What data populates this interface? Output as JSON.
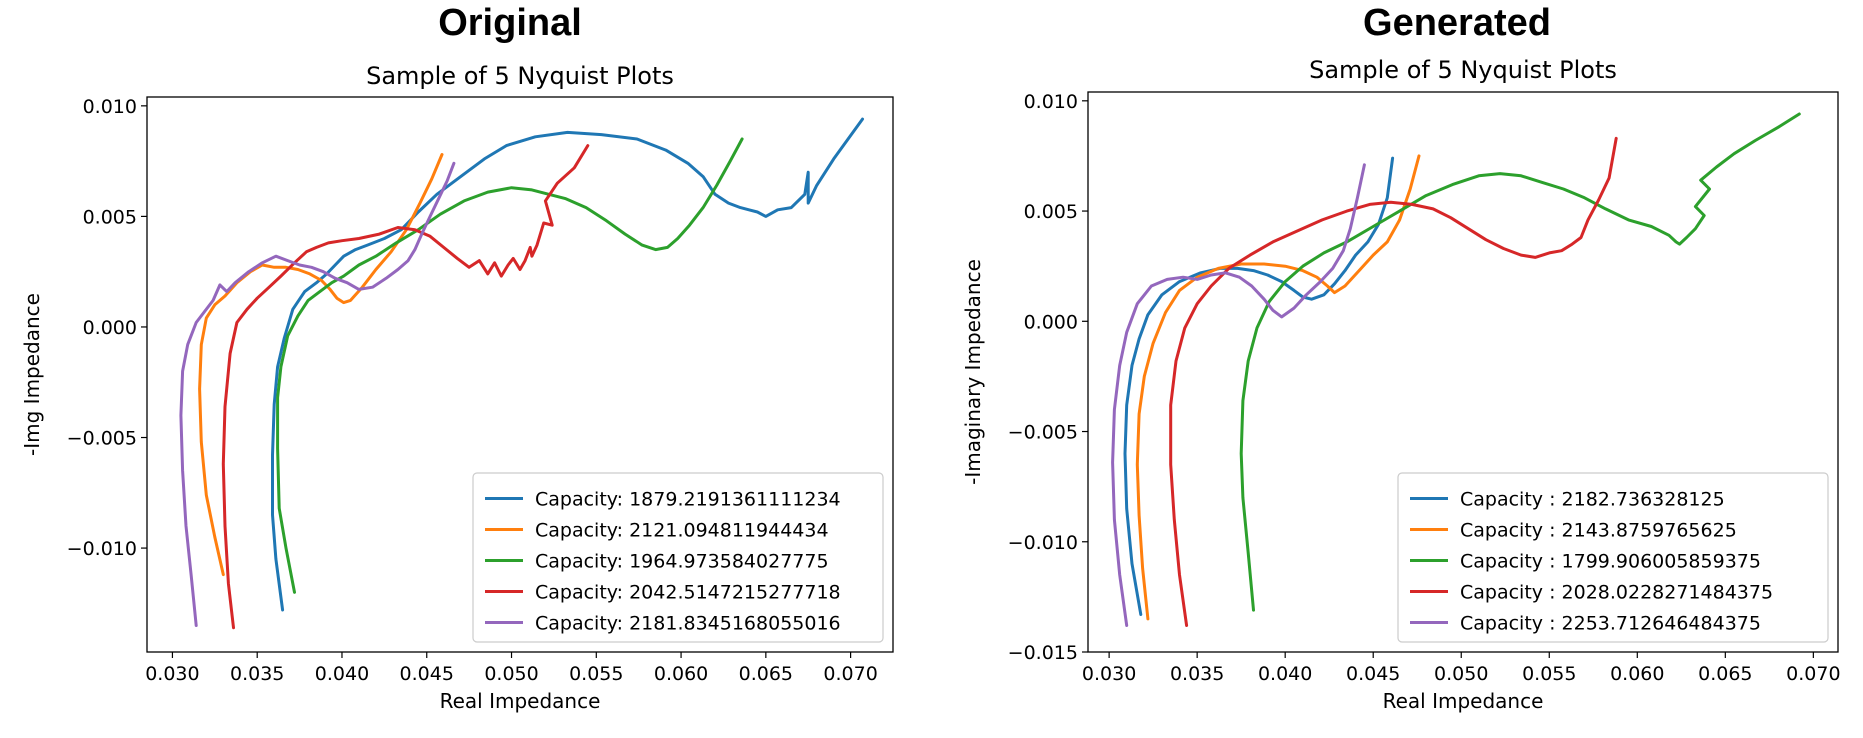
{
  "headers": [
    "Original",
    "Generated"
  ],
  "chart_data": [
    {
      "type": "line",
      "title": "Sample of 5 Nyquist Plots",
      "xlabel": "Real Impedance",
      "ylabel": "-Img Impedance",
      "xlim": [
        0.0285,
        0.0725
      ],
      "ylim": [
        -0.0147,
        0.0104
      ],
      "xticks": [
        0.03,
        0.035,
        0.04,
        0.045,
        0.05,
        0.055,
        0.06,
        0.065,
        0.07
      ],
      "xtick_labels": [
        "0.030",
        "0.035",
        "0.040",
        "0.045",
        "0.050",
        "0.055",
        "0.060",
        "0.065",
        "0.070"
      ],
      "yticks": [
        0.01,
        0.005,
        0.0,
        -0.005,
        -0.01
      ],
      "ytick_labels": [
        "0.010",
        "0.005",
        "0.000",
        "−0.005",
        "−0.010"
      ],
      "grid": false,
      "legend_position": "lower-right",
      "series": [
        {
          "name": "Capacity: 1879.2191361111234",
          "color": "#1f77b4",
          "x": [
            0.0365,
            0.0361,
            0.0359,
            0.0359,
            0.036,
            0.0362,
            0.0366,
            0.0371,
            0.0378,
            0.0385,
            0.0391,
            0.0396,
            0.0401,
            0.0408,
            0.0415,
            0.0425,
            0.0435,
            0.0445,
            0.0456,
            0.047,
            0.0484,
            0.0497,
            0.0514,
            0.0533,
            0.0553,
            0.0574,
            0.0591,
            0.0604,
            0.0613,
            0.062,
            0.0628,
            0.0635,
            0.064,
            0.0645,
            0.065,
            0.0657,
            0.0665,
            0.0673,
            0.0675,
            0.0675,
            0.068,
            0.069,
            0.0707
          ],
          "y": [
            -0.0128,
            -0.0105,
            -0.0085,
            -0.0058,
            -0.0035,
            -0.0018,
            -0.0005,
            0.0008,
            0.0016,
            0.002,
            0.0024,
            0.0028,
            0.0032,
            0.0035,
            0.0037,
            0.004,
            0.0044,
            0.0052,
            0.006,
            0.0068,
            0.0076,
            0.0082,
            0.0086,
            0.0088,
            0.0087,
            0.0085,
            0.008,
            0.0074,
            0.0068,
            0.006,
            0.0056,
            0.0054,
            0.0053,
            0.0052,
            0.005,
            0.0053,
            0.0054,
            0.006,
            0.007,
            0.0056,
            0.0064,
            0.0076,
            0.0094
          ]
        },
        {
          "name": "Capacity: 2121.094811944434",
          "color": "#ff7f0e",
          "x": [
            0.033,
            0.0325,
            0.032,
            0.0317,
            0.0316,
            0.0317,
            0.032,
            0.0325,
            0.0331,
            0.0338,
            0.0346,
            0.0353,
            0.036,
            0.0367,
            0.0374,
            0.0381,
            0.0388,
            0.0393,
            0.0397,
            0.0401,
            0.0405,
            0.0412,
            0.042,
            0.0429,
            0.0438,
            0.0446,
            0.0453,
            0.0459
          ],
          "y": [
            -0.0112,
            -0.0095,
            -0.0076,
            -0.0052,
            -0.0028,
            -0.0008,
            0.0004,
            0.001,
            0.0014,
            0.002,
            0.0025,
            0.0028,
            0.0027,
            0.0027,
            0.0026,
            0.0024,
            0.0021,
            0.0017,
            0.0013,
            0.0011,
            0.0012,
            0.0018,
            0.0026,
            0.0034,
            0.0044,
            0.0056,
            0.0067,
            0.0078
          ]
        },
        {
          "name": "Capacity: 1964.973584027775",
          "color": "#2ca02c",
          "x": [
            0.0372,
            0.0367,
            0.0363,
            0.0362,
            0.0362,
            0.0364,
            0.0368,
            0.0374,
            0.038,
            0.0387,
            0.0394,
            0.0401,
            0.041,
            0.042,
            0.0432,
            0.0445,
            0.0458,
            0.0472,
            0.0486,
            0.05,
            0.0512,
            0.0522,
            0.0532,
            0.0544,
            0.0556,
            0.0567,
            0.0577,
            0.0585,
            0.0592,
            0.0598,
            0.0605,
            0.0613,
            0.0621,
            0.0629,
            0.0636
          ],
          "y": [
            -0.012,
            -0.01,
            -0.0082,
            -0.0055,
            -0.0032,
            -0.0018,
            -0.0004,
            0.0005,
            0.0012,
            0.0016,
            0.002,
            0.0023,
            0.0028,
            0.0032,
            0.0038,
            0.0044,
            0.0051,
            0.0057,
            0.0061,
            0.0063,
            0.0062,
            0.006,
            0.0058,
            0.0054,
            0.0048,
            0.0042,
            0.0037,
            0.0035,
            0.0036,
            0.004,
            0.0046,
            0.0054,
            0.0064,
            0.0075,
            0.0085
          ]
        },
        {
          "name": "Capacity: 2042.5147215277718",
          "color": "#d62728",
          "x": [
            0.0336,
            0.0333,
            0.0331,
            0.033,
            0.0331,
            0.0334,
            0.0338,
            0.0344,
            0.035,
            0.0357,
            0.0364,
            0.0372,
            0.0379,
            0.0385,
            0.0392,
            0.04,
            0.041,
            0.0422,
            0.0433,
            0.0443,
            0.0452,
            0.046,
            0.0468,
            0.0475,
            0.0481,
            0.0486,
            0.049,
            0.0494,
            0.0498,
            0.0501,
            0.0505,
            0.0508,
            0.0511,
            0.0512,
            0.0515,
            0.0519,
            0.0524,
            0.052,
            0.0527,
            0.0537,
            0.0545
          ],
          "y": [
            -0.0136,
            -0.0116,
            -0.009,
            -0.0062,
            -0.0036,
            -0.0012,
            0.0002,
            0.0008,
            0.0013,
            0.0018,
            0.0023,
            0.0029,
            0.0034,
            0.0036,
            0.0038,
            0.0039,
            0.004,
            0.0042,
            0.0045,
            0.0044,
            0.0041,
            0.0036,
            0.0031,
            0.0027,
            0.003,
            0.0024,
            0.0029,
            0.0023,
            0.0028,
            0.0031,
            0.0026,
            0.003,
            0.0036,
            0.0032,
            0.0037,
            0.0047,
            0.0046,
            0.0057,
            0.0065,
            0.0072,
            0.0082
          ]
        },
        {
          "name": "Capacity: 2181.8345168055016",
          "color": "#9467bd",
          "x": [
            0.0314,
            0.0311,
            0.0308,
            0.0306,
            0.0305,
            0.0306,
            0.0309,
            0.0314,
            0.0319,
            0.0324,
            0.0328,
            0.0332,
            0.0337,
            0.0345,
            0.0353,
            0.0361,
            0.0368,
            0.0375,
            0.0382,
            0.0389,
            0.0396,
            0.0403,
            0.041,
            0.0418,
            0.0426,
            0.0433,
            0.0439,
            0.0443,
            0.0447,
            0.0452,
            0.0457,
            0.0462,
            0.0466
          ],
          "y": [
            -0.0135,
            -0.0112,
            -0.009,
            -0.0065,
            -0.004,
            -0.002,
            -0.0008,
            0.0002,
            0.0007,
            0.0012,
            0.0019,
            0.0016,
            0.002,
            0.0025,
            0.0029,
            0.0032,
            0.003,
            0.0028,
            0.0027,
            0.0025,
            0.0022,
            0.002,
            0.0017,
            0.0018,
            0.0022,
            0.0026,
            0.003,
            0.0035,
            0.0042,
            0.005,
            0.0058,
            0.0066,
            0.0074
          ]
        }
      ]
    },
    {
      "type": "line",
      "title": "Sample of 5 Nyquist Plots",
      "xlabel": "Real Impedance",
      "ylabel": "-Imaginary Impedance",
      "xlim": [
        0.0288,
        0.0714
      ],
      "ylim": [
        -0.015,
        0.0104
      ],
      "xticks": [
        0.03,
        0.035,
        0.04,
        0.045,
        0.05,
        0.055,
        0.06,
        0.065,
        0.07
      ],
      "xtick_labels": [
        "0.030",
        "0.035",
        "0.040",
        "0.045",
        "0.050",
        "0.055",
        "0.060",
        "0.065",
        "0.070"
      ],
      "yticks": [
        0.01,
        0.005,
        0.0,
        -0.005,
        -0.01,
        -0.015
      ],
      "ytick_labels": [
        "0.010",
        "0.005",
        "0.000",
        "−0.005",
        "−0.010",
        "−0.015"
      ],
      "grid": false,
      "legend_position": "lower-right",
      "series": [
        {
          "name": "Capacity : 2182.736328125",
          "color": "#1f77b4",
          "x": [
            0.0318,
            0.0313,
            0.031,
            0.0309,
            0.031,
            0.0313,
            0.0317,
            0.0322,
            0.033,
            0.034,
            0.0352,
            0.0363,
            0.0373,
            0.0382,
            0.039,
            0.0398,
            0.0405,
            0.041,
            0.0415,
            0.0422,
            0.0428,
            0.0434,
            0.044,
            0.0447,
            0.0453,
            0.0458,
            0.0461
          ],
          "y": [
            -0.0133,
            -0.011,
            -0.0085,
            -0.006,
            -0.0038,
            -0.002,
            -0.0008,
            0.0003,
            0.0012,
            0.0018,
            0.0022,
            0.0024,
            0.0024,
            0.0023,
            0.0021,
            0.0018,
            0.0014,
            0.0011,
            0.001,
            0.0012,
            0.0017,
            0.0023,
            0.003,
            0.0036,
            0.0044,
            0.0056,
            0.0074
          ]
        },
        {
          "name": "Capacity : 2143.8759765625",
          "color": "#ff7f0e",
          "x": [
            0.0322,
            0.0319,
            0.0317,
            0.0316,
            0.0317,
            0.032,
            0.0325,
            0.0332,
            0.034,
            0.035,
            0.0362,
            0.0375,
            0.0388,
            0.04,
            0.041,
            0.0418,
            0.0424,
            0.0428,
            0.0434,
            0.0442,
            0.045,
            0.0458,
            0.0465,
            0.0471,
            0.0476
          ],
          "y": [
            -0.0135,
            -0.0112,
            -0.0088,
            -0.0065,
            -0.0042,
            -0.0025,
            -0.001,
            0.0004,
            0.0014,
            0.002,
            0.0024,
            0.0026,
            0.0026,
            0.0025,
            0.0023,
            0.002,
            0.0016,
            0.0013,
            0.0016,
            0.0023,
            0.003,
            0.0036,
            0.0046,
            0.006,
            0.0075
          ]
        },
        {
          "name": "Capacity : 1799.906005859375",
          "color": "#2ca02c",
          "x": [
            0.0382,
            0.0379,
            0.0376,
            0.0375,
            0.0376,
            0.0379,
            0.0384,
            0.0391,
            0.04,
            0.041,
            0.0422,
            0.0435,
            0.045,
            0.0465,
            0.048,
            0.0495,
            0.051,
            0.0522,
            0.0534,
            0.0546,
            0.0558,
            0.057,
            0.0582,
            0.0595,
            0.0608,
            0.0618,
            0.0622,
            0.0624,
            0.0628,
            0.0633,
            0.0638,
            0.0633,
            0.0641,
            0.0636,
            0.0645,
            0.0655,
            0.0667,
            0.068,
            0.0692
          ],
          "y": [
            -0.0131,
            -0.0105,
            -0.008,
            -0.006,
            -0.0036,
            -0.0018,
            -0.0003,
            0.0009,
            0.0018,
            0.0025,
            0.0031,
            0.0036,
            0.0043,
            0.005,
            0.0057,
            0.0062,
            0.0066,
            0.0067,
            0.0066,
            0.0063,
            0.006,
            0.0056,
            0.0051,
            0.0046,
            0.0043,
            0.0039,
            0.0036,
            0.0035,
            0.0038,
            0.0042,
            0.0048,
            0.0052,
            0.006,
            0.0064,
            0.007,
            0.0076,
            0.0082,
            0.0088,
            0.0094
          ]
        },
        {
          "name": "Capacity : 2028.0228271484375",
          "color": "#d62728",
          "x": [
            0.0344,
            0.034,
            0.0337,
            0.0335,
            0.0335,
            0.0338,
            0.0343,
            0.035,
            0.0358,
            0.0368,
            0.038,
            0.0393,
            0.0407,
            0.0421,
            0.0435,
            0.0448,
            0.046,
            0.0472,
            0.0484,
            0.0494,
            0.0504,
            0.0514,
            0.0524,
            0.0534,
            0.0542,
            0.055,
            0.0557,
            0.0563,
            0.0568,
            0.0572,
            0.0578,
            0.0584,
            0.0588
          ],
          "y": [
            -0.0138,
            -0.0115,
            -0.009,
            -0.0065,
            -0.0038,
            -0.0018,
            -0.0003,
            0.0008,
            0.0016,
            0.0024,
            0.003,
            0.0036,
            0.0041,
            0.0046,
            0.005,
            0.0053,
            0.0054,
            0.0053,
            0.0051,
            0.0047,
            0.0042,
            0.0037,
            0.0033,
            0.003,
            0.0029,
            0.0031,
            0.0032,
            0.0035,
            0.0038,
            0.0046,
            0.0055,
            0.0065,
            0.0083
          ]
        },
        {
          "name": "Capacity : 2253.712646484375",
          "color": "#9467bd",
          "x": [
            0.031,
            0.0306,
            0.0303,
            0.0302,
            0.0303,
            0.0306,
            0.031,
            0.0316,
            0.0324,
            0.0333,
            0.0342,
            0.035,
            0.0358,
            0.0366,
            0.0374,
            0.0381,
            0.0388,
            0.0393,
            0.0398,
            0.0405,
            0.0412,
            0.042,
            0.0427,
            0.0433,
            0.0437,
            0.0441,
            0.0445
          ],
          "y": [
            -0.0138,
            -0.0115,
            -0.009,
            -0.0064,
            -0.004,
            -0.002,
            -0.0005,
            0.0008,
            0.0016,
            0.0019,
            0.002,
            0.0019,
            0.0021,
            0.0022,
            0.002,
            0.0016,
            0.001,
            0.0005,
            0.0002,
            0.0006,
            0.0012,
            0.0018,
            0.0024,
            0.0032,
            0.0042,
            0.0056,
            0.0071
          ]
        }
      ]
    }
  ]
}
